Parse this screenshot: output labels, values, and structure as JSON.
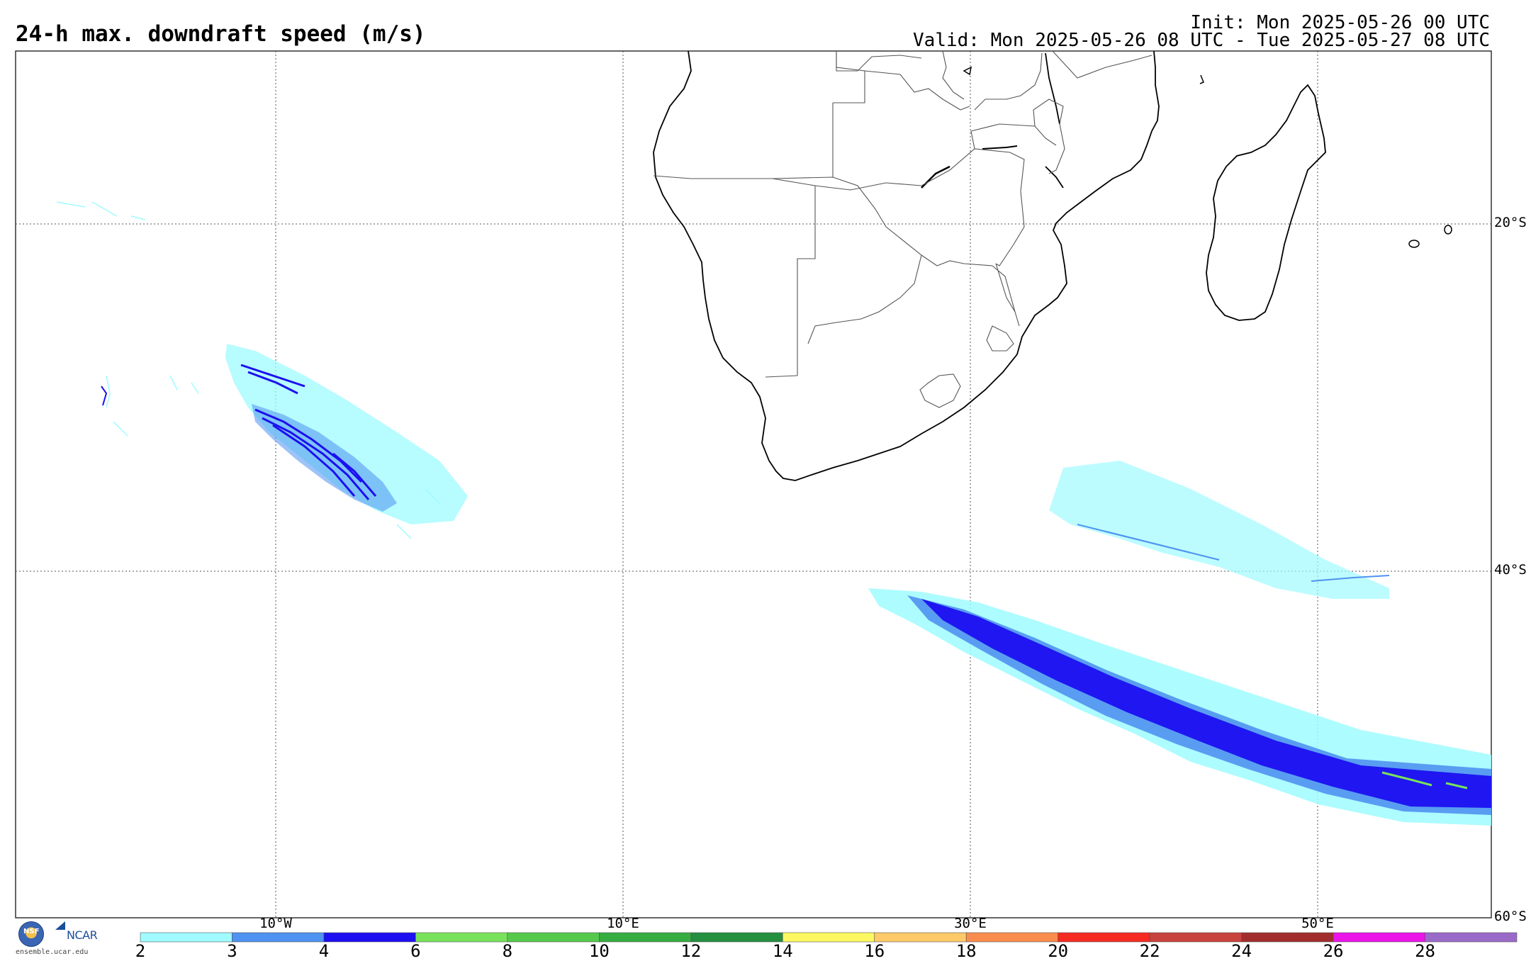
{
  "header": {
    "title": "24-h max. downdraft speed (m/s)",
    "init": "Init: Mon 2025-05-26 00 UTC",
    "valid": "Valid: Mon 2025-05-26 08 UTC - Tue 2025-05-27 08 UTC"
  },
  "map": {
    "lat_labels": [
      "20°S",
      "40°S",
      "60°S"
    ],
    "lon_labels": [
      "10°W",
      "10°E",
      "30°E",
      "50°E"
    ],
    "colors": {
      "coast": "#000000",
      "border": "#555555",
      "grid": "#555555"
    }
  },
  "colorbar": {
    "labels": [
      "2",
      "3",
      "4",
      "6",
      "8",
      "10",
      "12",
      "14",
      "16",
      "18",
      "20",
      "22",
      "24",
      "26",
      "28"
    ],
    "colors": [
      "#9ffbff",
      "#4f92f1",
      "#1c0ff0",
      "#79e25c",
      "#55c94b",
      "#36ad40",
      "#238f3f",
      "#fdf861",
      "#fdc969",
      "#f98d4e",
      "#f52a22",
      "#c8423e",
      "#a12e2c",
      "#eb14e9",
      "#9a6ac9"
    ]
  },
  "branding": {
    "nsf": "NSF",
    "ncar": "NCAR",
    "url": "ensemble.ucar.edu"
  }
}
